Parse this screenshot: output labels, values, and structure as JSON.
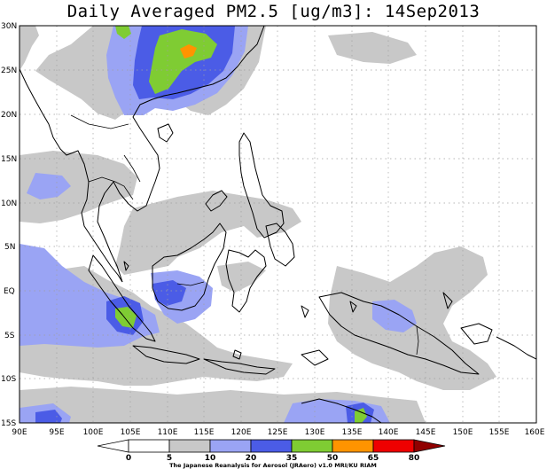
{
  "title": "Daily Averaged PM2.5 [ug/m3]: 14Sep2013",
  "lat_labels": [
    "30N",
    "25N",
    "20N",
    "15N",
    "10N",
    "5N",
    "EQ",
    "5S",
    "10S",
    "15S"
  ],
  "lon_labels": [
    "90E",
    "95E",
    "100E",
    "105E",
    "110E",
    "115E",
    "120E",
    "125E",
    "130E",
    "135E",
    "140E",
    "145E",
    "150E",
    "155E",
    "160E"
  ],
  "legend": {
    "ticks": [
      "0",
      "5",
      "10",
      "20",
      "35",
      "50",
      "65",
      "80"
    ],
    "colors": [
      "#ffffff",
      "#c8c8c8",
      "#9aa4f4",
      "#4b5ce6",
      "#7fcc33",
      "#ff9400",
      "#ee0000",
      "#900000"
    ]
  },
  "credit": "The Japanese Reanalysis for Aerosol (JRAero) v1.0 MRI/KU RIAM"
}
